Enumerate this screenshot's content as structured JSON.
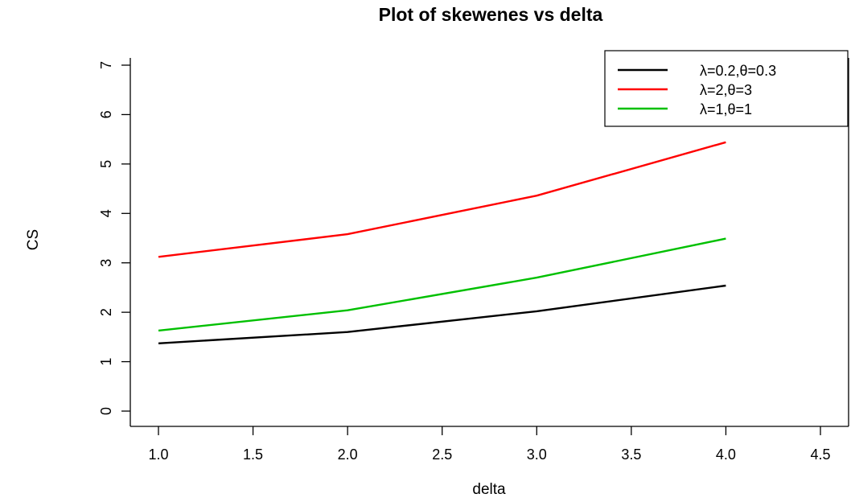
{
  "chart_data": {
    "type": "line",
    "title": "Plot of skewenes vs delta",
    "xlabel": "delta",
    "ylabel": "CS",
    "xlim": [
      1.0,
      4.5
    ],
    "ylim": [
      0,
      7
    ],
    "xticks": [
      "1.0",
      "1.5",
      "2.0",
      "2.5",
      "3.0",
      "3.5",
      "4.0",
      "4.5"
    ],
    "yticks": [
      "0",
      "1",
      "2",
      "3",
      "4",
      "5",
      "6",
      "7"
    ],
    "legend_position": "top-right",
    "series": [
      {
        "name": "λ=0.2,θ=0.3",
        "color": "#000000",
        "x": [
          1,
          2,
          3,
          4
        ],
        "y": [
          1.37,
          1.6,
          2.02,
          2.54
        ]
      },
      {
        "name": "λ=2,θ=3",
        "color": "#ff0000",
        "x": [
          1,
          2,
          3,
          4
        ],
        "y": [
          3.12,
          3.58,
          4.36,
          5.44
        ]
      },
      {
        "name": "λ=1,θ=1",
        "color": "#00c000",
        "x": [
          1,
          2,
          3,
          4
        ],
        "y": [
          1.63,
          2.04,
          2.7,
          3.49
        ]
      }
    ]
  }
}
